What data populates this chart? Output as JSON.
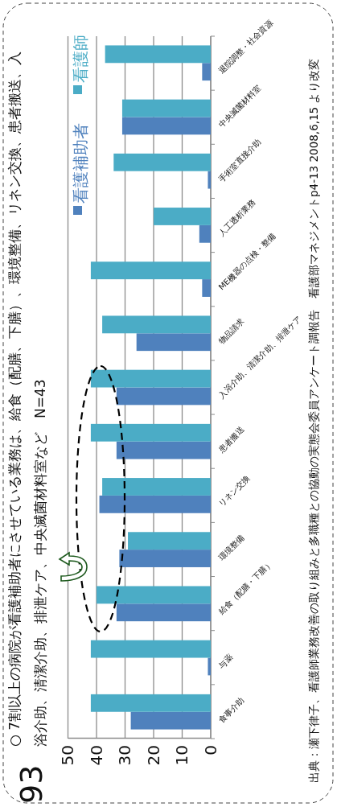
{
  "chart_data": {
    "type": "bar",
    "orientation": "horizontal",
    "title": "○ 7割以上の病院が看護補助者にさせている業務は、給食（配膳、下膳）、環境整備、リネン交換、患者搬送、入浴介助、清潔介助、排泄ケア、中央滅菌材料室など　N=43",
    "categories": [
      "退院調整・社会資源",
      "中央滅菌材料室",
      "手術室直接介助",
      "人工透析業務",
      "ME機器の点検・整備",
      "物品請求",
      "入浴介助、清潔介助、排泄ケア",
      "患者搬送",
      "リネン交換",
      "環境整備",
      "給食（配膳・下膳）",
      "与薬",
      "食事介助"
    ],
    "series": [
      {
        "name": "看護補助者",
        "color": "#4f81bd",
        "values": [
          3,
          31,
          1,
          4,
          3,
          26,
          33,
          33,
          39,
          32,
          33,
          1,
          28
        ]
      },
      {
        "name": "看護師",
        "color": "#4bacc6",
        "values": [
          37,
          31,
          34,
          20,
          42,
          38,
          42,
          42,
          38,
          29,
          40,
          42,
          42
        ]
      }
    ],
    "xlim": [
      50,
      0
    ],
    "xticks": [
      50,
      40,
      30,
      20,
      10,
      0
    ],
    "grid": "x",
    "legend": "top left",
    "annotations": [
      "出典：瀬下律子、看護師業務改善の取り組みと多職種との協動の実態会委員アンケート調報告　看護部マネジメントp4-13 2008,6,15 より改変",
      "93"
    ]
  }
}
